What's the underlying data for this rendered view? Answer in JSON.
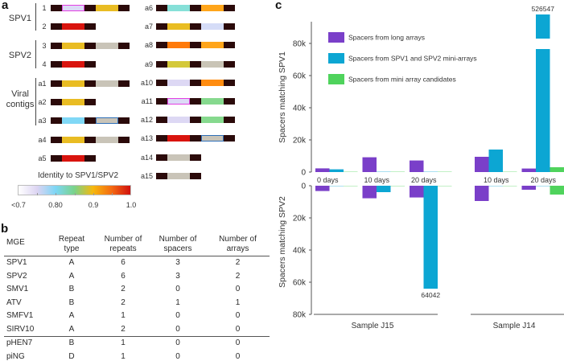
{
  "panel_a": {
    "letter": "a",
    "repeat_color": "#2b0a0a",
    "groups": [
      {
        "label_lines": [
          "SPV1"
        ]
      },
      {
        "label_lines": [
          "SPV2"
        ]
      },
      {
        "label_lines": [
          "Viral",
          "contigs"
        ]
      }
    ],
    "left_rows": [
      {
        "label": "1",
        "spacers": [
          {
            "color": "#dcdaf6",
            "border": "#e33fe3"
          },
          {
            "color": "#e9bc23"
          }
        ]
      },
      {
        "label": "2",
        "spacers": [
          {
            "color": "#d9140e"
          }
        ]
      },
      {
        "label": "3",
        "spacers": [
          {
            "color": "#e9bc23"
          },
          {
            "color": "#c9c4b8"
          }
        ]
      },
      {
        "label": "4",
        "spacers": [
          {
            "color": "#d9140e"
          }
        ]
      },
      {
        "label": "a1",
        "spacers": [
          {
            "color": "#e9bc23"
          },
          {
            "color": "#c9c4b8"
          }
        ]
      },
      {
        "label": "a2",
        "spacers": [
          {
            "color": "#e9bc23"
          }
        ]
      },
      {
        "label": "a3",
        "spacers": [
          {
            "color": "#80d8f6"
          },
          {
            "color": "#c9c4b8",
            "border": "#2f6fb8"
          }
        ]
      },
      {
        "label": "a4",
        "spacers": [
          {
            "color": "#e9bc23"
          },
          {
            "color": "#c9c4b8"
          }
        ]
      },
      {
        "label": "a5",
        "spacers": [
          {
            "color": "#d9140e"
          }
        ]
      }
    ],
    "right_rows": [
      {
        "label": "a6",
        "spacers": [
          {
            "color": "#86e0d8"
          },
          {
            "color": "#ffa51a"
          }
        ]
      },
      {
        "label": "a7",
        "spacers": [
          {
            "color": "#e9bd22"
          },
          {
            "color": "#d5dcf7"
          }
        ]
      },
      {
        "label": "a8",
        "spacers": [
          {
            "color": "#ff7a0a"
          },
          {
            "color": "#ffa51a"
          }
        ]
      },
      {
        "label": "a9",
        "spacers": [
          {
            "color": "#d4c93a"
          },
          {
            "color": "#c9c4b6"
          }
        ]
      },
      {
        "label": "a10",
        "spacers": [
          {
            "color": "#ddd8f4"
          },
          {
            "color": "#ff8c10"
          }
        ]
      },
      {
        "label": "a11",
        "spacers": [
          {
            "color": "#dcdaf6",
            "border": "#e33fe3"
          },
          {
            "color": "#86d98e"
          }
        ]
      },
      {
        "label": "a12",
        "spacers": [
          {
            "color": "#ddd8f4"
          },
          {
            "color": "#86d98e"
          }
        ]
      },
      {
        "label": "a13",
        "spacers": [
          {
            "color": "#d9140e"
          },
          {
            "color": "#c9c4b8",
            "border": "#2f6fb8"
          }
        ]
      },
      {
        "label": "a14",
        "spacers": [
          {
            "color": "#c9c4b8"
          }
        ]
      },
      {
        "label": "a15",
        "spacers": [
          {
            "color": "#c9c4b8"
          }
        ]
      }
    ],
    "colorbar": {
      "title": "Identity to SPV1/SPV2",
      "range": [
        0.7,
        1.0
      ],
      "tick_labels": [
        "<0.7",
        "0.80",
        "0.9",
        "1.0"
      ],
      "colors": [
        "#ffffff",
        "#dcd4f2",
        "#7dd6f5",
        "#7ad38a",
        "#f6b80e",
        "#f46a12",
        "#d0100e"
      ]
    }
  },
  "panel_b": {
    "letter": "b",
    "headers": [
      [
        "MGE"
      ],
      [
        "Repeat",
        "type"
      ],
      [
        "Number of",
        "repeats"
      ],
      [
        "Number of",
        "spacers"
      ],
      [
        "Number of",
        "arrays"
      ]
    ],
    "rows": [
      [
        "SPV1",
        "A",
        "6",
        "3",
        "2"
      ],
      [
        "SPV2",
        "A",
        "6",
        "3",
        "2"
      ],
      [
        "SMV1",
        "B",
        "2",
        "0",
        "0"
      ],
      [
        "ATV",
        "B",
        "2",
        "1",
        "1"
      ],
      [
        "SMFV1",
        "A",
        "1",
        "0",
        "0"
      ],
      [
        "SIRV10",
        "A",
        "2",
        "0",
        "0"
      ],
      [
        "pHEN7",
        "B",
        "1",
        "0",
        "0"
      ],
      [
        "piNG",
        "D",
        "1",
        "0",
        "0"
      ]
    ],
    "separator_after_row": 5
  },
  "chart_data": {
    "type": "bar",
    "letter": "c",
    "title": "",
    "legend_position": "top-left",
    "groups": [
      {
        "name": "Sample J15",
        "categories": [
          "0 days",
          "10 days",
          "20 days"
        ]
      },
      {
        "name": "Sample J14",
        "categories": [
          "10 days",
          "20 days"
        ]
      }
    ],
    "axes": {
      "spv1": {
        "label": "Spacers matching SPV1",
        "direction": "up",
        "ylim": [
          0,
          93000
        ],
        "ticks": [
          0,
          20000,
          40000,
          60000,
          80000
        ],
        "tick_labels": [
          "0",
          "20k",
          "40k",
          "60k",
          "80k"
        ],
        "axis_break": true
      },
      "spv2": {
        "label": "Spacers matching SPV2",
        "direction": "down",
        "ylim": [
          0,
          80000
        ],
        "ticks": [
          0,
          20000,
          40000,
          60000,
          80000
        ],
        "tick_labels": [
          "0",
          "20k",
          "40k",
          "60k",
          "80k"
        ]
      }
    },
    "series": [
      {
        "name": "Spacers from long arrays",
        "color": "#7a3fc9",
        "spv1": [
          2300,
          9200,
          7200,
          9500,
          2200
        ],
        "spv2": [
          3300,
          7800,
          7300,
          9500,
          2500
        ]
      },
      {
        "name": "Spacers from SPV1 and SPV2 mini-arrays",
        "color": "#0ca6d3",
        "spv1": [
          1700,
          0,
          0,
          14000,
          526547
        ],
        "spv2": [
          0,
          4000,
          64042,
          0,
          0
        ]
      },
      {
        "name": "Spacers from mini array candidates",
        "color": "#4fd35c",
        "spv1": [
          0,
          0,
          0,
          0,
          3000
        ],
        "spv2": [
          0,
          0,
          0,
          0,
          5500
        ]
      }
    ],
    "data_labels": [
      {
        "series": 1,
        "category": 4,
        "axis": "spv1",
        "text": "526547"
      },
      {
        "series": 1,
        "category": 2,
        "axis": "spv2",
        "text": "64042"
      }
    ]
  }
}
